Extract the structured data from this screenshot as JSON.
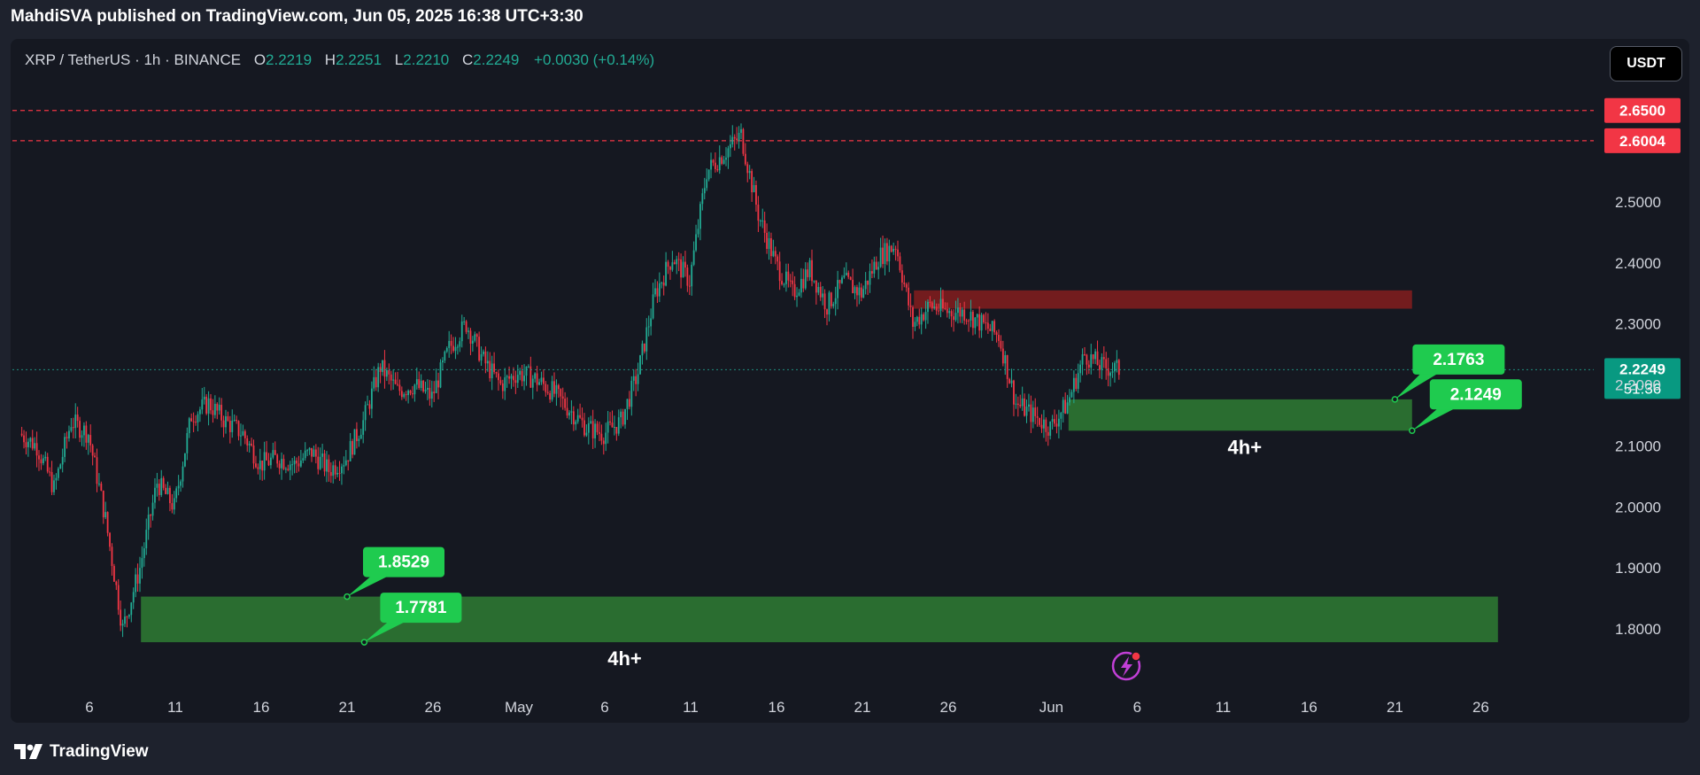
{
  "header": {
    "published": "MahdiSVA published on TradingView.com, Jun 05, 2025 16:38 UTC+3:30"
  },
  "legend": {
    "symbol": "XRP / TetherUS · 1h · BINANCE",
    "o_label": "O",
    "o": "2.2219",
    "h_label": "H",
    "h": "2.2251",
    "l_label": "L",
    "l": "2.2210",
    "c_label": "C",
    "c": "2.2249",
    "change": "+0.0030 (+0.14%)"
  },
  "currency_button": "USDT",
  "footer": {
    "brand": "TradingView"
  },
  "colors": {
    "up": "#22ab94",
    "down": "#f23645",
    "zone_green": "#2e7d32",
    "zone_red": "#8b1e1e",
    "label_green": "#1fcb4f"
  },
  "chart_data": {
    "type": "candlestick",
    "symbol": "XRP / TetherUS",
    "interval": "1h",
    "exchange": "BINANCE",
    "ylim": [
      1.7,
      2.71
    ],
    "yticks": [
      "1.8000",
      "1.9000",
      "2.0000",
      "2.1000",
      "2.2000",
      "2.3000",
      "2.4000",
      "2.5000"
    ],
    "xticks": [
      {
        "label": "6",
        "date": "2025-04-06"
      },
      {
        "label": "11",
        "date": "2025-04-11"
      },
      {
        "label": "16",
        "date": "2025-04-16"
      },
      {
        "label": "21",
        "date": "2025-04-21"
      },
      {
        "label": "26",
        "date": "2025-04-26"
      },
      {
        "label": "May",
        "date": "2025-05-01"
      },
      {
        "label": "6",
        "date": "2025-05-06"
      },
      {
        "label": "11",
        "date": "2025-05-11"
      },
      {
        "label": "16",
        "date": "2025-05-16"
      },
      {
        "label": "21",
        "date": "2025-05-21"
      },
      {
        "label": "26",
        "date": "2025-05-26"
      },
      {
        "label": "Jun",
        "date": "2025-06-01"
      },
      {
        "label": "6",
        "date": "2025-06-06"
      },
      {
        "label": "11",
        "date": "2025-06-11"
      },
      {
        "label": "16",
        "date": "2025-06-16"
      },
      {
        "label": "21",
        "date": "2025-06-21"
      },
      {
        "label": "26",
        "date": "2025-06-26"
      }
    ],
    "price_path": [
      [
        "2025-04-02",
        2.12
      ],
      [
        "2025-04-03",
        2.1
      ],
      [
        "2025-04-04",
        2.03
      ],
      [
        "2025-04-05",
        2.14
      ],
      [
        "2025-04-06",
        2.12
      ],
      [
        "2025-04-07",
        1.98
      ],
      [
        "2025-04-08",
        1.8
      ],
      [
        "2025-04-09",
        1.9
      ],
      [
        "2025-04-10",
        2.04
      ],
      [
        "2025-04-11",
        2.0
      ],
      [
        "2025-04-12",
        2.15
      ],
      [
        "2025-04-13",
        2.17
      ],
      [
        "2025-04-14",
        2.14
      ],
      [
        "2025-04-15",
        2.12
      ],
      [
        "2025-04-16",
        2.07
      ],
      [
        "2025-04-17",
        2.08
      ],
      [
        "2025-04-18",
        2.07
      ],
      [
        "2025-04-19",
        2.09
      ],
      [
        "2025-04-20",
        2.06
      ],
      [
        "2025-04-21",
        2.08
      ],
      [
        "2025-04-22",
        2.14
      ],
      [
        "2025-04-23",
        2.23
      ],
      [
        "2025-04-24",
        2.19
      ],
      [
        "2025-04-25",
        2.2
      ],
      [
        "2025-04-26",
        2.18
      ],
      [
        "2025-04-27",
        2.26
      ],
      [
        "2025-04-28",
        2.3
      ],
      [
        "2025-04-29",
        2.24
      ],
      [
        "2025-04-30",
        2.2
      ],
      [
        "2025-05-01",
        2.22
      ],
      [
        "2025-05-02",
        2.21
      ],
      [
        "2025-05-03",
        2.19
      ],
      [
        "2025-05-04",
        2.16
      ],
      [
        "2025-05-05",
        2.13
      ],
      [
        "2025-05-06",
        2.12
      ],
      [
        "2025-05-07",
        2.14
      ],
      [
        "2025-05-08",
        2.22
      ],
      [
        "2025-05-09",
        2.35
      ],
      [
        "2025-05-10",
        2.41
      ],
      [
        "2025-05-11",
        2.37
      ],
      [
        "2025-05-12",
        2.55
      ],
      [
        "2025-05-13",
        2.58
      ],
      [
        "2025-05-14",
        2.61
      ],
      [
        "2025-05-15",
        2.48
      ],
      [
        "2025-05-16",
        2.4
      ],
      [
        "2025-05-17",
        2.35
      ],
      [
        "2025-05-18",
        2.39
      ],
      [
        "2025-05-19",
        2.33
      ],
      [
        "2025-05-20",
        2.37
      ],
      [
        "2025-05-21",
        2.35
      ],
      [
        "2025-05-22",
        2.41
      ],
      [
        "2025-05-23",
        2.43
      ],
      [
        "2025-05-24",
        2.3
      ],
      [
        "2025-05-25",
        2.33
      ],
      [
        "2025-05-26",
        2.32
      ],
      [
        "2025-05-27",
        2.32
      ],
      [
        "2025-05-28",
        2.3
      ],
      [
        "2025-05-29",
        2.28
      ],
      [
        "2025-05-30",
        2.17
      ],
      [
        "2025-05-31",
        2.15
      ],
      [
        "2025-06-01",
        2.13
      ],
      [
        "2025-06-02",
        2.17
      ],
      [
        "2025-06-03",
        2.25
      ],
      [
        "2025-06-04",
        2.23
      ],
      [
        "2025-06-05",
        2.2249
      ]
    ],
    "horizontal_lines": [
      {
        "price": 2.65,
        "label": "2.6500"
      },
      {
        "price": 2.6004,
        "label": "2.6004"
      }
    ],
    "last_price": {
      "price": 2.2249,
      "label": "2.2249",
      "countdown": "51:36"
    },
    "zones": [
      {
        "kind": "red",
        "from": "2025-05-24",
        "to": "2025-06-22",
        "top": 2.355,
        "bottom": 2.325
      },
      {
        "kind": "green",
        "from": "2025-06-02",
        "to": "2025-06-22",
        "top": 2.1763,
        "bottom": 2.1249,
        "caption": "4h+"
      },
      {
        "kind": "green",
        "from": "2025-04-09",
        "to": "2025-06-27",
        "top": 1.8529,
        "bottom": 1.7781,
        "caption": "4h+"
      }
    ],
    "price_labels": [
      {
        "text": "2.1763",
        "price": 2.1763,
        "anchor": "2025-06-21"
      },
      {
        "text": "2.1249",
        "price": 2.1249,
        "anchor": "2025-06-22"
      },
      {
        "text": "1.8529",
        "price": 1.8529,
        "anchor": "2025-04-21"
      },
      {
        "text": "1.7781",
        "price": 1.7781,
        "anchor": "2025-04-22"
      }
    ]
  }
}
